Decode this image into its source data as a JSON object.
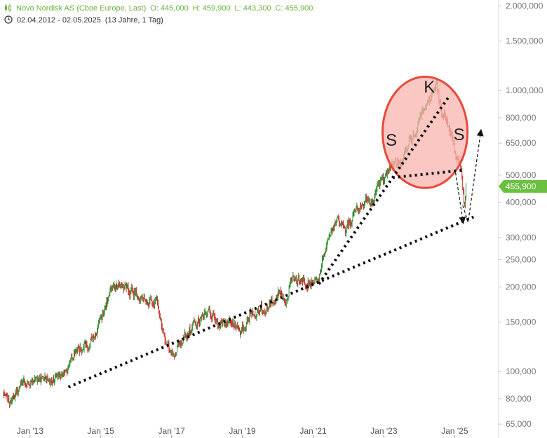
{
  "header": {
    "instrument": "Novo Nordisk AS (Cboe Europe, Last)",
    "open": "O: 445,000",
    "high": "H: 459,900",
    "low": "L: 443,300",
    "close": "C: 455,900",
    "range": "02.04.2012 - 02.05.2025",
    "range_note": "(13 Jahre, 1 Tag)",
    "candle_icon": "candlestick-icon",
    "clock_icon": "clock-icon"
  },
  "colors": {
    "up": "#2e8b2e",
    "down": "#cc2b2b",
    "header": "#6db33f",
    "price_tag": "#6cc040",
    "ellipse_fill": "#f9b4ad",
    "ellipse_stroke": "#e8493a"
  },
  "chart_data": {
    "type": "candlestick",
    "y_scale": "log",
    "ylim": [
      58,
      2100
    ],
    "xlim": [
      "2012-04-02",
      "2026-02-15"
    ],
    "grid": false,
    "y_ticks": [
      {
        "value": 2000,
        "label": "2.000,000"
      },
      {
        "value": 1500,
        "label": "1.500,000"
      },
      {
        "value": 1000,
        "label": "1.000,000"
      },
      {
        "value": 800,
        "label": "800,000"
      },
      {
        "value": 650,
        "label": "650,000"
      },
      {
        "value": 500,
        "label": "500,000"
      },
      {
        "value": 400,
        "label": "400,000"
      },
      {
        "value": 300,
        "label": "300,000"
      },
      {
        "value": 250,
        "label": "250,000"
      },
      {
        "value": 200,
        "label": "200,000"
      },
      {
        "value": 150,
        "label": "150,000"
      },
      {
        "value": 100,
        "label": "100,000"
      },
      {
        "value": 80,
        "label": "80,000"
      },
      {
        "value": 65,
        "label": "65,000"
      }
    ],
    "x_ticks": [
      {
        "date": "2013-01-01",
        "label": "Jan '13"
      },
      {
        "date": "2015-01-01",
        "label": "Jan '15"
      },
      {
        "date": "2017-01-01",
        "label": "Jan '17"
      },
      {
        "date": "2019-01-01",
        "label": "Jan '19"
      },
      {
        "date": "2021-01-01",
        "label": "Jan '21"
      },
      {
        "date": "2023-01-01",
        "label": "Jan '23"
      },
      {
        "date": "2025-01-01",
        "label": "Jan '25"
      }
    ],
    "last_price": {
      "value": 455.9,
      "label": "455,900"
    },
    "price_path": [
      {
        "date": "2012-04-02",
        "price": 83
      },
      {
        "date": "2012-06-15",
        "price": 80
      },
      {
        "date": "2012-09-01",
        "price": 86
      },
      {
        "date": "2012-12-01",
        "price": 90
      },
      {
        "date": "2013-04-01",
        "price": 96
      },
      {
        "date": "2013-06-01",
        "price": 92
      },
      {
        "date": "2013-10-01",
        "price": 95
      },
      {
        "date": "2014-01-15",
        "price": 98
      },
      {
        "date": "2014-04-01",
        "price": 116
      },
      {
        "date": "2014-08-01",
        "price": 123
      },
      {
        "date": "2014-11-01",
        "price": 135
      },
      {
        "date": "2015-02-01",
        "price": 165
      },
      {
        "date": "2015-05-01",
        "price": 198
      },
      {
        "date": "2015-08-01",
        "price": 205
      },
      {
        "date": "2015-11-01",
        "price": 195
      },
      {
        "date": "2016-02-01",
        "price": 185
      },
      {
        "date": "2016-05-01",
        "price": 183
      },
      {
        "date": "2016-08-01",
        "price": 172
      },
      {
        "date": "2016-11-15",
        "price": 122
      },
      {
        "date": "2017-02-01",
        "price": 118
      },
      {
        "date": "2017-06-01",
        "price": 135
      },
      {
        "date": "2017-10-01",
        "price": 150
      },
      {
        "date": "2018-01-15",
        "price": 170
      },
      {
        "date": "2018-05-01",
        "price": 148
      },
      {
        "date": "2018-09-01",
        "price": 150
      },
      {
        "date": "2018-12-15",
        "price": 140
      },
      {
        "date": "2019-03-01",
        "price": 155
      },
      {
        "date": "2019-07-01",
        "price": 165
      },
      {
        "date": "2019-10-01",
        "price": 172
      },
      {
        "date": "2020-01-15",
        "price": 195
      },
      {
        "date": "2020-03-20",
        "price": 178
      },
      {
        "date": "2020-06-01",
        "price": 212
      },
      {
        "date": "2020-09-01",
        "price": 212
      },
      {
        "date": "2020-12-15",
        "price": 208
      },
      {
        "date": "2021-03-01",
        "price": 220
      },
      {
        "date": "2021-06-01",
        "price": 290
      },
      {
        "date": "2021-09-01",
        "price": 340
      },
      {
        "date": "2021-12-01",
        "price": 320
      },
      {
        "date": "2022-03-01",
        "price": 365
      },
      {
        "date": "2022-06-01",
        "price": 390
      },
      {
        "date": "2022-09-01",
        "price": 410
      },
      {
        "date": "2023-01-01",
        "price": 480
      },
      {
        "date": "2023-04-01",
        "price": 550
      },
      {
        "date": "2023-07-01",
        "price": 545
      },
      {
        "date": "2023-09-01",
        "price": 640
      },
      {
        "date": "2023-12-01",
        "price": 720
      },
      {
        "date": "2024-03-01",
        "price": 880
      },
      {
        "date": "2024-06-25",
        "price": 1030
      },
      {
        "date": "2024-08-15",
        "price": 870
      },
      {
        "date": "2024-10-01",
        "price": 790
      },
      {
        "date": "2024-12-01",
        "price": 700
      },
      {
        "date": "2025-01-10",
        "price": 590
      },
      {
        "date": "2025-02-20",
        "price": 550
      },
      {
        "date": "2025-03-20",
        "price": 480
      },
      {
        "date": "2025-04-10",
        "price": 390
      },
      {
        "date": "2025-05-02",
        "price": 455.9
      }
    ],
    "annotations": {
      "labels": [
        {
          "text": "K",
          "date": "2024-04-15",
          "price": 1020
        },
        {
          "text": "S",
          "date": "2023-03-20",
          "price": 660
        },
        {
          "text": "S",
          "date": "2025-02-15",
          "price": 690
        }
      ],
      "ellipse": {
        "center_date": "2024-03-01",
        "center_price": 710,
        "date_half_width_years": 1.2,
        "price_top": 1120,
        "price_bottom": 450
      },
      "lines": [
        {
          "style": "dotted",
          "from": {
            "date": "2014-02-01",
            "price": 88
          },
          "to": {
            "date": "2025-07-15",
            "price": 355
          }
        },
        {
          "style": "dotted",
          "from": {
            "date": "2021-03-01",
            "price": 205
          },
          "to": {
            "date": "2024-11-01",
            "price": 950
          }
        },
        {
          "style": "dotted",
          "from": {
            "date": "2023-04-01",
            "price": 490
          },
          "to": {
            "date": "2025-03-15",
            "price": 520
          }
        }
      ],
      "arrows": [
        {
          "style": "dashed",
          "points": [
            {
              "date": "2025-01-10",
              "price": 510
            },
            {
              "date": "2025-04-01",
              "price": 335
            }
          ]
        },
        {
          "style": "dashed",
          "points": [
            {
              "date": "2025-03-25",
              "price": 390
            },
            {
              "date": "2025-05-20",
              "price": 340
            },
            {
              "date": "2025-10-01",
              "price": 730
            }
          ]
        }
      ]
    }
  }
}
